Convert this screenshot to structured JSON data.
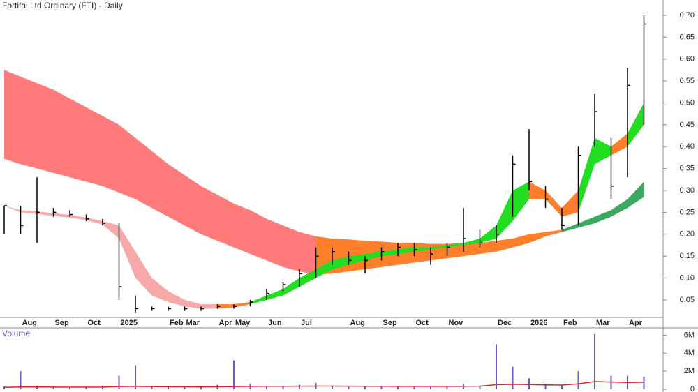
{
  "chart_data": [
    {
      "type": "ohlc",
      "title": "Fortifai Ltd Ordinary (FTI) - Daily",
      "categories": [
        null,
        "Aug",
        null,
        "Sep",
        null,
        "Oct",
        null,
        "2025",
        null,
        null,
        "Feb",
        "Mar",
        null,
        "Apr",
        "May",
        null,
        "Jun",
        null,
        "Jul",
        null,
        null,
        "Aug",
        null,
        "Sep",
        null,
        "Oct",
        null,
        "Nov",
        null,
        null,
        "Dec",
        null,
        "2026",
        null,
        "Feb",
        null,
        "Mar",
        null,
        "Apr",
        null
      ],
      "high": [
        0.265,
        0.265,
        0.33,
        0.26,
        0.255,
        0.245,
        0.235,
        0.225,
        0.06,
        0.035,
        0.035,
        0.035,
        0.035,
        0.04,
        0.04,
        0.05,
        0.075,
        0.09,
        0.12,
        0.17,
        0.17,
        0.16,
        0.15,
        0.17,
        0.18,
        0.18,
        0.17,
        0.18,
        0.26,
        0.21,
        0.22,
        0.38,
        0.44,
        0.31,
        0.26,
        0.4,
        0.52,
        0.42,
        0.58,
        0.7
      ],
      "low": [
        0.2,
        0.2,
        0.18,
        0.24,
        0.24,
        0.23,
        0.22,
        0.05,
        0.02,
        0.025,
        0.025,
        0.025,
        0.025,
        0.03,
        0.03,
        0.035,
        0.05,
        0.07,
        0.08,
        0.1,
        0.13,
        0.13,
        0.11,
        0.14,
        0.15,
        0.15,
        0.13,
        0.15,
        0.16,
        0.17,
        0.18,
        0.24,
        0.3,
        0.26,
        0.21,
        0.22,
        0.4,
        0.28,
        0.33,
        0.45
      ],
      "close": [
        0.265,
        0.22,
        0.25,
        0.25,
        0.245,
        0.235,
        0.225,
        0.08,
        0.03,
        0.03,
        0.03,
        0.03,
        0.03,
        0.035,
        0.035,
        0.045,
        0.065,
        0.085,
        0.11,
        0.15,
        0.16,
        0.14,
        0.14,
        0.16,
        0.17,
        0.165,
        0.155,
        0.17,
        0.19,
        0.18,
        0.2,
        0.36,
        0.32,
        0.28,
        0.22,
        0.38,
        0.48,
        0.31,
        0.54,
        0.68
      ],
      "color": "#000000",
      "bands": [
        {
          "upper": [
            0.575,
            0.56,
            0.545,
            0.53,
            0.51,
            0.49,
            0.47,
            0.45,
            0.42,
            0.39,
            0.36,
            0.335,
            0.31,
            0.29,
            0.27,
            0.255,
            0.235,
            0.22,
            0.205,
            0.195,
            0.19,
            0.188,
            0.185,
            0.183,
            0.18,
            0.18,
            0.178,
            0.178,
            0.18,
            0.18,
            0.185,
            0.19,
            0.2,
            0.205,
            0.21,
            0.225,
            0.24,
            0.255,
            0.28,
            0.32
          ],
          "lower": [
            0.372,
            0.36,
            0.35,
            0.34,
            0.33,
            0.32,
            0.31,
            0.295,
            0.28,
            0.26,
            0.24,
            0.22,
            0.2,
            0.185,
            0.17,
            0.155,
            0.14,
            0.125,
            0.115,
            0.108,
            0.11,
            0.115,
            0.12,
            0.125,
            0.13,
            0.135,
            0.14,
            0.145,
            0.15,
            0.155,
            0.16,
            0.17,
            0.18,
            0.195,
            0.205,
            0.215,
            0.225,
            0.24,
            0.26,
            0.285
          ],
          "colors": [
            "#ff7b7b",
            "#ff7b7b",
            "#ff7b7b",
            "#ff7b7b",
            "#ff7b7b",
            "#ff7b7b",
            "#ff7b7b",
            "#ff7b7b",
            "#ff7b7b",
            "#ff7b7b",
            "#ff7b7b",
            "#ff7b7b",
            "#ff7b7b",
            "#ff7b7b",
            "#ff7b7b",
            "#ff7b7b",
            "#ff7b7b",
            "#ff7b7b",
            "#ff7b7b",
            "#ff7f2a",
            "#ff7f2a",
            "#ff7f2a",
            "#ff7f2a",
            "#ff7f2a",
            "#ff7f2a",
            "#ff7f2a",
            "#ff7f2a",
            "#ff7f2a",
            "#ff7f2a",
            "#ff7f2a",
            "#ff7f2a",
            "#ff7f2a",
            "#ff7f2a",
            "#ff7f2a",
            "#3aa860",
            "#3aa860",
            "#3aa860",
            "#3aa860",
            "#3aa860",
            "#3aa860"
          ]
        },
        {
          "upper": [
            0.265,
            0.255,
            0.252,
            0.248,
            0.244,
            0.238,
            0.23,
            0.22,
            0.16,
            0.1,
            0.07,
            0.05,
            0.04,
            0.04,
            0.04,
            0.045,
            0.06,
            0.075,
            0.1,
            0.12,
            0.14,
            0.15,
            0.155,
            0.16,
            0.165,
            0.17,
            0.17,
            0.175,
            0.18,
            0.19,
            0.22,
            0.3,
            0.32,
            0.3,
            0.26,
            0.3,
            0.42,
            0.4,
            0.43,
            0.5
          ],
          "lower": [
            0.265,
            0.25,
            0.246,
            0.242,
            0.238,
            0.232,
            0.222,
            0.19,
            0.1,
            0.06,
            0.045,
            0.035,
            0.03,
            0.03,
            0.033,
            0.04,
            0.05,
            0.06,
            0.08,
            0.1,
            0.12,
            0.13,
            0.14,
            0.15,
            0.155,
            0.16,
            0.165,
            0.17,
            0.175,
            0.18,
            0.19,
            0.23,
            0.28,
            0.28,
            0.24,
            0.25,
            0.36,
            0.38,
            0.4,
            0.45
          ],
          "colors": [
            "#f7a9a9",
            "#f7a9a9",
            "#f7a9a9",
            "#f7a9a9",
            "#f7a9a9",
            "#f7a9a9",
            "#f7a9a9",
            "#f7a9a9",
            "#f7a9a9",
            "#f7a9a9",
            "#f7a9a9",
            "#f7a9a9",
            "#f7a9a9",
            "#ff7f2a",
            "#ff7f2a",
            "#22dd22",
            "#22dd22",
            "#22dd22",
            "#22dd22",
            "#22dd22",
            "#22dd22",
            "#22dd22",
            "#22dd22",
            "#22dd22",
            "#22dd22",
            "#22dd22",
            "#22dd22",
            "#22dd22",
            "#22dd22",
            "#22dd22",
            "#22dd22",
            "#22dd22",
            "#ff7f2a",
            "#ff7f2a",
            "#ff7f2a",
            "#22dd22",
            "#22dd22",
            "#ff7f2a",
            "#22dd22",
            "#22dd22"
          ]
        }
      ],
      "ylim": [
        0.01,
        0.735
      ],
      "yticks": [
        {
          "value": 0.05,
          "label": "0.05"
        },
        {
          "value": 0.1,
          "label": "0.10"
        },
        {
          "value": 0.15,
          "label": "0.15"
        },
        {
          "value": 0.2,
          "label": "0.20"
        },
        {
          "value": 0.25,
          "label": "0.25"
        },
        {
          "value": 0.3,
          "label": "0.30"
        },
        {
          "value": 0.35,
          "label": "0.35"
        },
        {
          "value": 0.4,
          "label": "0.40"
        },
        {
          "value": 0.45,
          "label": "0.45"
        },
        {
          "value": 0.5,
          "label": "0.50"
        },
        {
          "value": 0.55,
          "label": "0.55"
        },
        {
          "value": 0.6,
          "label": "0.60"
        },
        {
          "value": 0.65,
          "label": "0.65"
        },
        {
          "value": 0.7,
          "label": "0.70"
        }
      ]
    },
    {
      "type": "bar",
      "title": "Volume",
      "series": [
        {
          "type": "bar",
          "color": "#6a5acd",
          "values": [
            300000,
            2000000,
            400000,
            300000,
            200000,
            300000,
            400000,
            1500000,
            2600000,
            400000,
            300000,
            300000,
            300000,
            500000,
            3200000,
            600000,
            400000,
            400000,
            500000,
            700000,
            400000,
            300000,
            300000,
            400000,
            300000,
            300000,
            400000,
            300000,
            600000,
            400000,
            5000000,
            2500000,
            1200000,
            600000,
            500000,
            2000000,
            6100000,
            1500000,
            1500000,
            1400000
          ]
        },
        {
          "type": "line",
          "color": "#dd2222",
          "values": [
            200000,
            250000,
            250000,
            240000,
            230000,
            230000,
            240000,
            300000,
            320000,
            300000,
            280000,
            270000,
            260000,
            270000,
            300000,
            320000,
            330000,
            330000,
            340000,
            350000,
            350000,
            340000,
            330000,
            330000,
            320000,
            320000,
            320000,
            320000,
            330000,
            340000,
            500000,
            550000,
            520000,
            480000,
            460000,
            600000,
            850000,
            800000,
            750000,
            780000
          ]
        }
      ],
      "ylim": [
        0,
        6800000
      ],
      "yticks": [
        0,
        {
          "value": 2000000,
          "label": "2M"
        },
        {
          "value": 4000000,
          "label": "4M"
        },
        {
          "value": 6000000,
          "label": "6M"
        }
      ]
    }
  ]
}
